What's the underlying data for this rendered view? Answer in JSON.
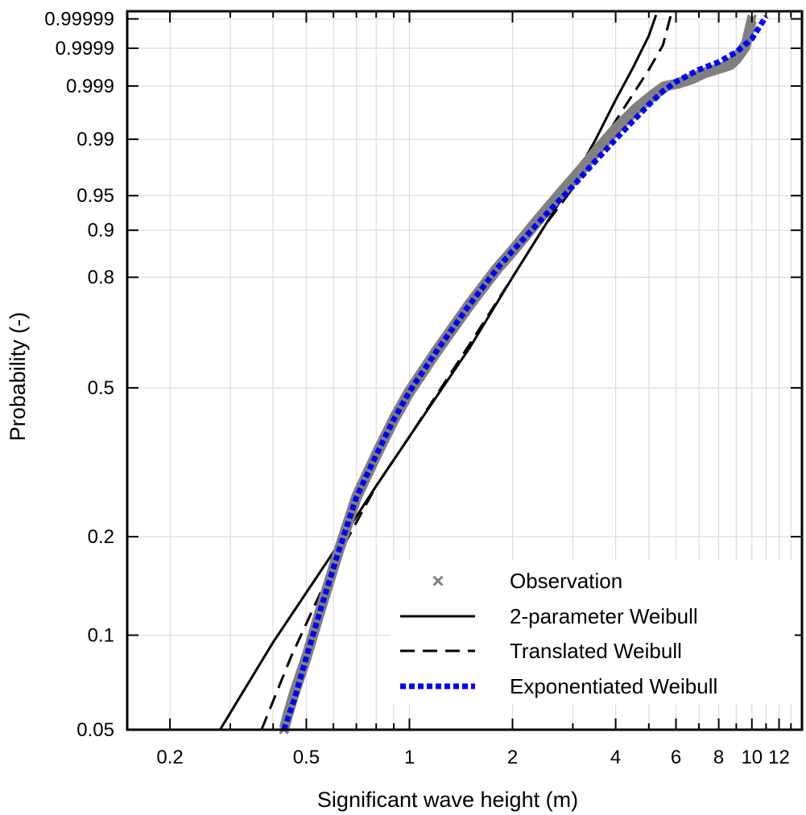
{
  "chart_data": {
    "type": "line",
    "title": "",
    "xlabel": "Significant wave height (m)",
    "ylabel": "Probability (-)",
    "x_scale": "log",
    "y_scale": "weibull-probability",
    "xlim": [
      0.15,
      14
    ],
    "ylim": [
      0.05,
      0.999995
    ],
    "x_ticks": [
      {
        "value": 0.2,
        "label": "0.2"
      },
      {
        "value": 0.5,
        "label": "0.5"
      },
      {
        "value": 1,
        "label": "1"
      },
      {
        "value": 2,
        "label": "2"
      },
      {
        "value": 4,
        "label": "4"
      },
      {
        "value": 6,
        "label": "6"
      },
      {
        "value": 8,
        "label": "8"
      },
      {
        "value": 10,
        "label": "10"
      },
      {
        "value": 12,
        "label": "12"
      }
    ],
    "x_minor_ticks": [
      0.3,
      0.4,
      0.6,
      0.7,
      0.8,
      0.9,
      3,
      5,
      7,
      9,
      11,
      13,
      14
    ],
    "y_ticks": [
      {
        "value": 0.05,
        "label": "0.05"
      },
      {
        "value": 0.1,
        "label": "0.1"
      },
      {
        "value": 0.2,
        "label": "0.2"
      },
      {
        "value": 0.5,
        "label": "0.5"
      },
      {
        "value": 0.8,
        "label": "0.8"
      },
      {
        "value": 0.9,
        "label": "0.9"
      },
      {
        "value": 0.95,
        "label": "0.95"
      },
      {
        "value": 0.99,
        "label": "0.99"
      },
      {
        "value": 0.999,
        "label": "0.999"
      },
      {
        "value": 0.9999,
        "label": "0.9999"
      },
      {
        "value": 0.99999,
        "label": "0.99999"
      }
    ],
    "grid": true,
    "legend_position": "bottom-right",
    "series": [
      {
        "name": "Observation",
        "style": "markers-x",
        "color": "#808080",
        "x": [
          0.43,
          0.44,
          0.46,
          0.5,
          0.55,
          0.62,
          0.7,
          0.8,
          0.9,
          1.0,
          1.2,
          1.5,
          1.8,
          2.0,
          2.4,
          2.8,
          3.2,
          3.6,
          4.0,
          4.6,
          5.2,
          5.6,
          6.0,
          6.6,
          7.2,
          7.8,
          8.2,
          8.6,
          8.8,
          9.0,
          9.2,
          9.6,
          10.0
        ],
        "y": [
          0.05,
          0.055,
          0.065,
          0.085,
          0.12,
          0.18,
          0.26,
          0.34,
          0.42,
          0.49,
          0.6,
          0.73,
          0.82,
          0.86,
          0.92,
          0.955,
          0.975,
          0.987,
          0.993,
          0.997,
          0.9985,
          0.999,
          0.9991,
          0.9993,
          0.9995,
          0.9996,
          0.99965,
          0.9997,
          0.99975,
          0.9998,
          0.99985,
          0.99992,
          0.99999
        ]
      },
      {
        "name": "2-parameter Weibull",
        "style": "solid",
        "color": "#000000",
        "x": [
          0.28,
          0.4,
          0.6,
          0.8,
          1.0,
          1.5,
          2.0,
          2.5,
          3.0,
          3.5,
          4.0,
          4.5,
          5.0,
          5.25
        ],
        "y": [
          0.05,
          0.095,
          0.18,
          0.28,
          0.38,
          0.61,
          0.8,
          0.91,
          0.965,
          0.99,
          0.998,
          0.99965,
          0.99996,
          0.999993
        ]
      },
      {
        "name": "Translated Weibull",
        "style": "dashed",
        "color": "#000000",
        "x": [
          0.37,
          0.45,
          0.6,
          0.8,
          1.0,
          1.5,
          2.0,
          2.5,
          3.0,
          3.5,
          4.0,
          4.5,
          5.0,
          5.5,
          5.8
        ],
        "y": [
          0.05,
          0.085,
          0.165,
          0.28,
          0.38,
          0.62,
          0.8,
          0.91,
          0.958,
          0.984,
          0.995,
          0.9985,
          0.9996,
          0.99992,
          0.999993
        ]
      },
      {
        "name": "Exponentiated Weibull",
        "style": "dotted",
        "color": "#0000ff",
        "x": [
          0.43,
          0.46,
          0.5,
          0.55,
          0.62,
          0.7,
          0.8,
          0.9,
          1.0,
          1.2,
          1.5,
          1.8,
          2.0,
          2.5,
          3.0,
          3.5,
          4.0,
          4.5,
          5.0,
          5.5,
          6.0,
          7.0,
          8.0,
          9.0,
          10.0,
          11.0
        ],
        "y": [
          0.05,
          0.062,
          0.085,
          0.12,
          0.18,
          0.26,
          0.34,
          0.42,
          0.49,
          0.6,
          0.73,
          0.82,
          0.86,
          0.925,
          0.96,
          0.98,
          0.99,
          0.995,
          0.9975,
          0.9987,
          0.9992,
          0.9996,
          0.99975,
          0.99987,
          0.99995,
          0.999992
        ]
      }
    ]
  }
}
